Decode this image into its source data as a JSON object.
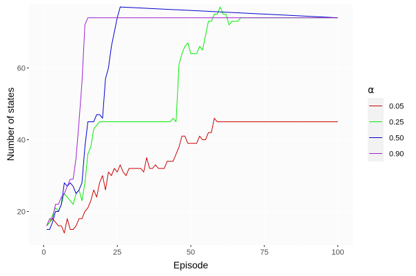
{
  "chart_data": {
    "type": "line",
    "title": "",
    "xlabel": "Episode",
    "ylabel": "Number of states",
    "xlim": [
      0,
      100
    ],
    "ylim": [
      11.5,
      77
    ],
    "x_ticks": [
      "0",
      "25",
      "50",
      "75",
      "100"
    ],
    "y_ticks": [
      "20",
      "40",
      "60"
    ],
    "grid": true,
    "legend_position": "right",
    "legend_title": "α",
    "series": [
      {
        "name": "0.05",
        "color": "#cc0000",
        "x": [
          1,
          2,
          3,
          4,
          5,
          6,
          7,
          8,
          9,
          10,
          11,
          12,
          13,
          14,
          15,
          16,
          17,
          18,
          19,
          20,
          21,
          22,
          23,
          24,
          25,
          26,
          27,
          28,
          29,
          30,
          31,
          32,
          33,
          34,
          35,
          36,
          37,
          38,
          39,
          40,
          41,
          42,
          43,
          44,
          45,
          46,
          47,
          48,
          49,
          50,
          51,
          52,
          53,
          54,
          55,
          56,
          57,
          58,
          59,
          100
        ],
        "values": [
          16,
          17,
          18,
          17,
          16,
          16,
          14,
          18,
          15,
          15,
          16,
          18,
          18,
          20,
          21,
          23,
          26,
          24,
          28,
          30,
          26,
          31,
          30,
          32,
          31,
          33,
          31,
          30,
          32,
          32,
          32,
          32,
          32,
          31,
          35,
          32,
          32,
          33,
          32,
          32,
          32,
          34,
          34,
          34,
          36,
          38,
          41,
          41,
          39,
          39,
          39,
          39,
          41,
          40,
          40,
          42,
          42,
          46,
          45,
          45
        ]
      },
      {
        "name": "0.25",
        "color": "#00ee00",
        "x": [
          1,
          2,
          3,
          4,
          5,
          6,
          7,
          8,
          9,
          10,
          11,
          12,
          13,
          14,
          15,
          16,
          17,
          18,
          19,
          20,
          43,
          44,
          45,
          46,
          47,
          48,
          49,
          50,
          51,
          52,
          53,
          54,
          55,
          56,
          57,
          58,
          59,
          60,
          61,
          62,
          63,
          64,
          65,
          66,
          67,
          68,
          100
        ],
        "values": [
          16,
          17,
          19,
          21,
          20,
          22,
          25,
          24,
          23,
          22,
          25,
          26,
          23,
          28,
          36,
          38,
          43,
          44,
          45,
          45,
          45,
          46,
          45,
          61,
          64,
          66,
          67,
          64,
          64,
          64,
          66,
          65,
          69,
          73,
          73,
          75,
          75,
          77,
          75,
          75,
          72,
          73,
          73,
          73,
          74,
          74,
          74
        ]
      },
      {
        "name": "0.50",
        "color": "#0000cc",
        "x": [
          1,
          2,
          3,
          4,
          5,
          6,
          7,
          8,
          9,
          10,
          11,
          12,
          13,
          14,
          15,
          16,
          17,
          18,
          19,
          20,
          21,
          22,
          23,
          24,
          25,
          26,
          100
        ],
        "values": [
          15,
          15,
          17,
          20,
          20,
          22,
          28,
          27,
          28,
          27,
          25,
          26,
          28,
          38,
          45,
          45,
          45,
          47,
          47,
          46,
          57,
          60,
          66,
          70,
          74,
          77,
          74
        ]
      },
      {
        "name": "0.90",
        "color": "#a020d0",
        "x": [
          1,
          2,
          3,
          4,
          5,
          6,
          7,
          8,
          9,
          10,
          11,
          12,
          13,
          14,
          15,
          100
        ],
        "values": [
          16,
          18,
          18,
          22,
          22,
          24,
          25,
          27,
          29,
          29,
          35,
          45,
          56,
          72,
          74,
          74
        ]
      }
    ]
  }
}
